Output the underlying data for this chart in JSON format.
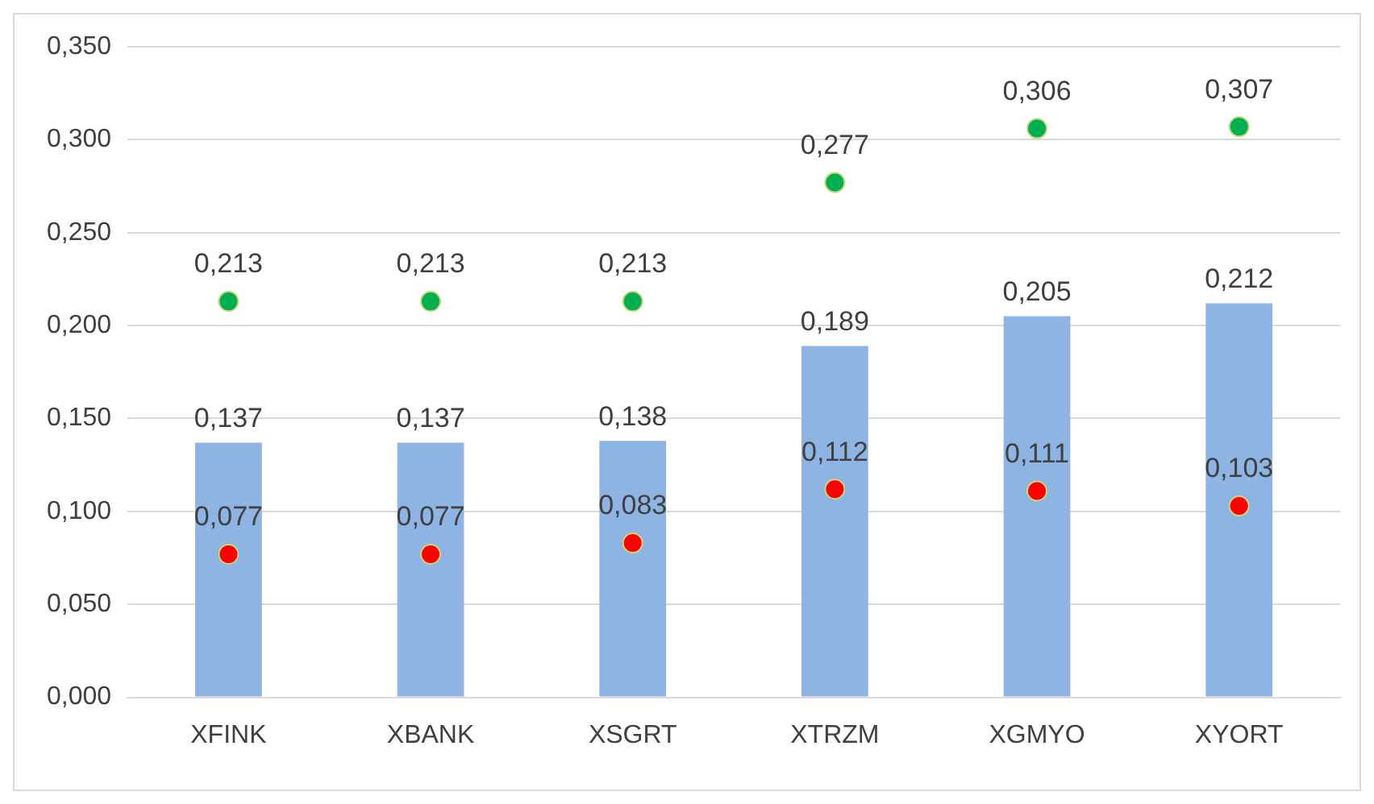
{
  "chart_data": {
    "type": "bar",
    "categories": [
      "XFINK",
      "XBANK",
      "XSGRT",
      "XTRZM",
      "XGMYO",
      "XYORT"
    ],
    "series": [
      {
        "color": "#8eb4e3",
        "values": [
          0.137,
          0.137,
          0.138,
          0.189,
          0.205,
          0.212
        ],
        "value_labels": [
          "0,137",
          "0,137",
          "0,138",
          "0,189",
          "0,205",
          "0,212"
        ]
      },
      {
        "type": "scatter",
        "color": "#00b050",
        "values": [
          0.213,
          0.213,
          0.213,
          0.277,
          0.306,
          0.307
        ],
        "value_labels": [
          "0,213",
          "0,213",
          "0,213",
          "0,277",
          "0,306",
          "0,307"
        ]
      },
      {
        "type": "scatter",
        "color": "#ff0000",
        "values": [
          0.077,
          0.077,
          0.083,
          0.112,
          0.111,
          0.103
        ],
        "value_labels": [
          "0,077",
          "0,077",
          "0,083",
          "0,112",
          "0,111",
          "0,103"
        ]
      }
    ],
    "ylim": [
      0,
      0.35
    ],
    "yticks": [
      {
        "value": 0,
        "label": "0,000"
      },
      {
        "value": 0.05,
        "label": "0,050"
      },
      {
        "value": 0.1,
        "label": "0,100"
      },
      {
        "value": 0.15,
        "label": "0,150"
      },
      {
        "value": 0.2,
        "label": "0,200"
      },
      {
        "value": 0.25,
        "label": "0,250"
      },
      {
        "value": 0.3,
        "label": "0,300"
      },
      {
        "value": 0.35,
        "label": "0,350"
      }
    ],
    "grid": "y",
    "legend": false,
    "marker": "circle"
  }
}
